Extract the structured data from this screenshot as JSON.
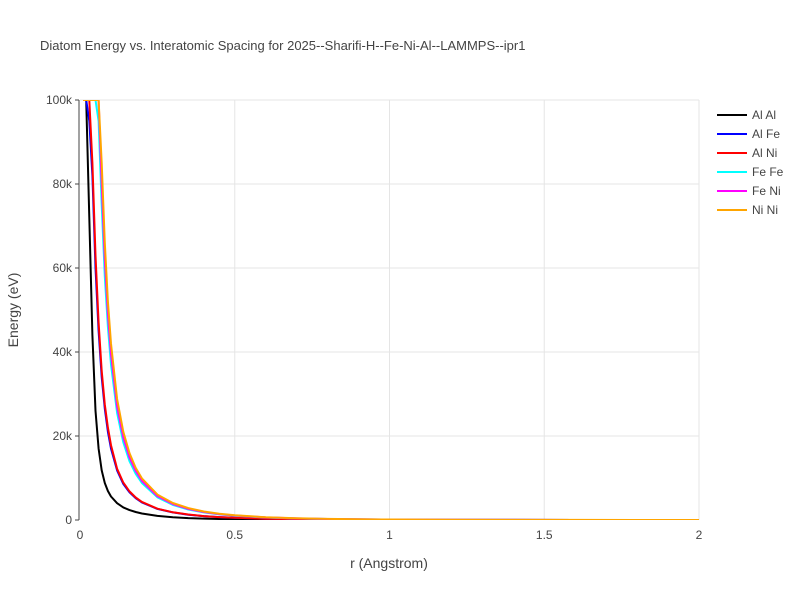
{
  "chart_data": {
    "type": "line",
    "title": "Diatom Energy vs. Interatomic Spacing for 2025--Sharifi-H--Fe-Ni-Al--LAMMPS--ipr1",
    "xlabel": "r (Angstrom)",
    "ylabel": "Energy (eV)",
    "xlim": [
      0,
      2
    ],
    "ylim": [
      0,
      100000
    ],
    "x_ticks": [
      0,
      0.5,
      1,
      1.5,
      2
    ],
    "x_tick_labels": [
      "0",
      "0.5",
      "1",
      "1.5",
      "2"
    ],
    "y_ticks": [
      0,
      20000,
      40000,
      60000,
      80000,
      100000
    ],
    "y_tick_labels": [
      "0",
      "20k",
      "40k",
      "60k",
      "80k",
      "100k"
    ],
    "grid": true,
    "legend_position": "top-right",
    "x": [
      0.01,
      0.02,
      0.03,
      0.04,
      0.05,
      0.06,
      0.07,
      0.08,
      0.09,
      0.1,
      0.12,
      0.14,
      0.16,
      0.18,
      0.2,
      0.25,
      0.3,
      0.35,
      0.4,
      0.45,
      0.5,
      0.6,
      0.7,
      0.8,
      0.9,
      1.0,
      1.2,
      1.4,
      1.6,
      1.8,
      2.0
    ],
    "series": [
      {
        "name": "Al Al",
        "color": "#000000",
        "values": [
          100000,
          100000,
          72000,
          44000,
          26000,
          17000,
          11800,
          8800,
          6900,
          5600,
          4000,
          3000,
          2350,
          1900,
          1550,
          980,
          660,
          460,
          330,
          240,
          180,
          105,
          62,
          38,
          24,
          16,
          8,
          4,
          2,
          1,
          0
        ]
      },
      {
        "name": "Al Fe",
        "color": "#0000ff",
        "values": [
          100000,
          100000,
          95000,
          82000,
          60000,
          45000,
          34000,
          26500,
          21000,
          17000,
          11800,
          8600,
          6600,
          5200,
          4200,
          2650,
          1800,
          1270,
          920,
          690,
          520,
          310,
          190,
          120,
          80,
          52,
          24,
          12,
          6,
          3,
          1
        ]
      },
      {
        "name": "Al Ni",
        "color": "#ff0000",
        "values": [
          100000,
          100000,
          100000,
          85000,
          63000,
          47000,
          35500,
          27500,
          22000,
          17800,
          12200,
          8900,
          6800,
          5350,
          4300,
          2700,
          1830,
          1300,
          940,
          700,
          530,
          315,
          195,
          122,
          82,
          53,
          25,
          12,
          6,
          3,
          1
        ]
      },
      {
        "name": "Fe Fe",
        "color": "#00ffff",
        "values": [
          100000,
          100000,
          100000,
          100000,
          100000,
          95000,
          75000,
          58000,
          46000,
          37000,
          25500,
          18500,
          14000,
          11000,
          8800,
          5400,
          3600,
          2500,
          1800,
          1330,
          1000,
          590,
          360,
          230,
          150,
          100,
          45,
          22,
          11,
          5,
          2
        ]
      },
      {
        "name": "Fe Ni",
        "color": "#ff00ff",
        "values": [
          100000,
          100000,
          100000,
          100000,
          100000,
          100000,
          80000,
          62000,
          49000,
          39500,
          27000,
          19700,
          14900,
          11700,
          9300,
          5700,
          3800,
          2650,
          1900,
          1400,
          1060,
          620,
          380,
          240,
          155,
          104,
          47,
          23,
          11,
          5,
          2
        ]
      },
      {
        "name": "Ni Ni",
        "color": "#ffa500",
        "values": [
          100000,
          100000,
          100000,
          100000,
          100000,
          100000,
          85000,
          66000,
          52000,
          42000,
          28800,
          21000,
          15900,
          12400,
          9900,
          6050,
          4050,
          2830,
          2030,
          1500,
          1130,
          660,
          405,
          255,
          165,
          110,
          50,
          24,
          12,
          5,
          2
        ]
      }
    ]
  }
}
